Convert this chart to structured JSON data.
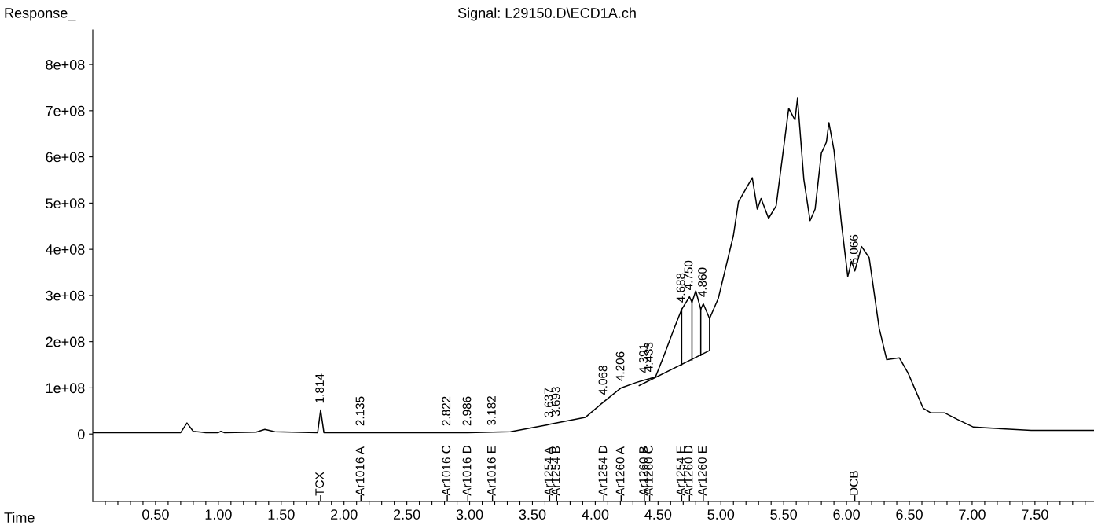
{
  "chart_data": {
    "type": "line",
    "title": "Signal: L29150.D\\ECD1A.ch",
    "ylabel": "Response_",
    "xlabel": "Time",
    "series": [
      {
        "color": "#000000",
        "x": [
          0,
          0.7,
          0.75,
          0.8,
          0.9,
          1.0,
          1.02,
          1.05,
          1.3,
          1.37,
          1.45,
          1.79,
          1.814,
          1.84,
          2.135,
          2.5,
          2.822,
          2.986,
          3.182,
          3.325,
          3.62,
          3.637,
          3.693,
          3.92,
          4.068,
          4.206,
          4.33,
          4.391,
          4.433,
          4.48,
          4.54,
          4.63,
          4.688,
          4.75,
          4.77,
          4.8,
          4.84,
          4.86,
          4.91,
          4.98,
          5.1,
          5.14,
          5.25,
          5.29,
          5.32,
          5.38,
          5.44,
          5.54,
          5.59,
          5.61,
          5.66,
          5.71,
          5.75,
          5.8,
          5.84,
          5.86,
          5.9,
          5.96,
          6.01,
          6.04,
          6.066,
          6.12,
          6.18,
          6.26,
          6.32,
          6.42,
          6.49,
          6.61,
          6.67,
          6.78,
          6.88,
          7.01,
          7.47,
          7.97
        ],
        "values": [
          3000000,
          3000000,
          24000000,
          6000000,
          3000000,
          3000000,
          6000000,
          3000000,
          4000000,
          10000000,
          5000000,
          3000000,
          52000000,
          3000000,
          3000000,
          3000000,
          3000000,
          3000000,
          4000000,
          5000000,
          20000000,
          21000000,
          24000000,
          36000000,
          70000000,
          100000000,
          112000000,
          117000000,
          120000000,
          124000000,
          165000000,
          230000000,
          270000000,
          297000000,
          285000000,
          310000000,
          270000000,
          282000000,
          250000000,
          294000000,
          430000000,
          503000000,
          555000000,
          487000000,
          510000000,
          467000000,
          494000000,
          705000000,
          680000000,
          727000000,
          552000000,
          462000000,
          487000000,
          608000000,
          632000000,
          674000000,
          615000000,
          455000000,
          341000000,
          374000000,
          353000000,
          406000000,
          382000000,
          229000000,
          161000000,
          165000000,
          132000000,
          56000000,
          46000000,
          46000000,
          32000000,
          15000000,
          8000000,
          8000000
        ]
      },
      {
        "color": "#000000",
        "x": [
          4.35,
          4.91,
          null,
          4.688,
          4.688,
          null,
          4.77,
          4.77,
          null,
          4.84,
          4.84,
          null,
          4.91,
          4.91
        ],
        "values": [
          105000000,
          181000000,
          null,
          150000000,
          270000000,
          null,
          160000000,
          285000000,
          null,
          170000000,
          270000000,
          null,
          181000000,
          250000000
        ]
      }
    ],
    "xlim": [
      0,
      7.97
    ],
    "ylim": [
      -146000000,
      875000000
    ],
    "xticks": [
      {
        "value": 0.1,
        "label": null
      },
      {
        "value": 0.2,
        "label": null
      },
      {
        "value": 0.3,
        "label": null
      },
      {
        "value": 0.4,
        "label": null
      },
      {
        "value": 0.5,
        "label": "0.50"
      },
      {
        "value": 0.6,
        "label": null
      },
      {
        "value": 0.7,
        "label": null
      },
      {
        "value": 0.8,
        "label": null
      },
      {
        "value": 0.9,
        "label": null
      },
      {
        "value": 1.0,
        "label": "1.00"
      },
      {
        "value": 1.1,
        "label": null
      },
      {
        "value": 1.2,
        "label": null
      },
      {
        "value": 1.3,
        "label": null
      },
      {
        "value": 1.4,
        "label": null
      },
      {
        "value": 1.5,
        "label": "1.50"
      },
      {
        "value": 1.6,
        "label": null
      },
      {
        "value": 1.7,
        "label": null
      },
      {
        "value": 1.8,
        "label": null
      },
      {
        "value": 1.9,
        "label": null
      },
      {
        "value": 2.0,
        "label": "2.00"
      },
      {
        "value": 2.1,
        "label": null
      },
      {
        "value": 2.2,
        "label": null
      },
      {
        "value": 2.3,
        "label": null
      },
      {
        "value": 2.4,
        "label": null
      },
      {
        "value": 2.5,
        "label": "2.50"
      },
      {
        "value": 2.6,
        "label": null
      },
      {
        "value": 2.7,
        "label": null
      },
      {
        "value": 2.8,
        "label": null
      },
      {
        "value": 2.9,
        "label": null
      },
      {
        "value": 3.0,
        "label": "3.00"
      },
      {
        "value": 3.1,
        "label": null
      },
      {
        "value": 3.2,
        "label": null
      },
      {
        "value": 3.3,
        "label": null
      },
      {
        "value": 3.4,
        "label": null
      },
      {
        "value": 3.5,
        "label": "3.50"
      },
      {
        "value": 3.6,
        "label": null
      },
      {
        "value": 3.7,
        "label": null
      },
      {
        "value": 3.8,
        "label": null
      },
      {
        "value": 3.9,
        "label": null
      },
      {
        "value": 4.0,
        "label": "4.00"
      },
      {
        "value": 4.1,
        "label": null
      },
      {
        "value": 4.2,
        "label": null
      },
      {
        "value": 4.3,
        "label": null
      },
      {
        "value": 4.4,
        "label": null
      },
      {
        "value": 4.5,
        "label": "4.50"
      },
      {
        "value": 4.6,
        "label": null
      },
      {
        "value": 4.7,
        "label": null
      },
      {
        "value": 4.8,
        "label": null
      },
      {
        "value": 4.9,
        "label": null
      },
      {
        "value": 5.0,
        "label": "5.00"
      },
      {
        "value": 5.1,
        "label": null
      },
      {
        "value": 5.2,
        "label": null
      },
      {
        "value": 5.3,
        "label": null
      },
      {
        "value": 5.4,
        "label": null
      },
      {
        "value": 5.5,
        "label": "5.50"
      },
      {
        "value": 5.6,
        "label": null
      },
      {
        "value": 5.7,
        "label": null
      },
      {
        "value": 5.8,
        "label": null
      },
      {
        "value": 5.9,
        "label": null
      },
      {
        "value": 6.0,
        "label": "6.00"
      },
      {
        "value": 6.1,
        "label": null
      },
      {
        "value": 6.2,
        "label": null
      },
      {
        "value": 6.3,
        "label": null
      },
      {
        "value": 6.4,
        "label": null
      },
      {
        "value": 6.5,
        "label": "6.50"
      },
      {
        "value": 6.6,
        "label": null
      },
      {
        "value": 6.7,
        "label": null
      },
      {
        "value": 6.8,
        "label": null
      },
      {
        "value": 6.9,
        "label": null
      },
      {
        "value": 7.0,
        "label": "7.00"
      },
      {
        "value": 7.1,
        "label": null
      },
      {
        "value": 7.2,
        "label": null
      },
      {
        "value": 7.3,
        "label": null
      },
      {
        "value": 7.4,
        "label": null
      },
      {
        "value": 7.5,
        "label": "7.50"
      },
      {
        "value": 7.6,
        "label": null
      },
      {
        "value": 7.7,
        "label": null
      },
      {
        "value": 7.8,
        "label": null
      },
      {
        "value": 7.9,
        "label": null
      }
    ],
    "yticks": [
      0,
      {
        "value": 100000000,
        "label": "1e+08"
      },
      {
        "value": 200000000,
        "label": "2e+08"
      },
      {
        "value": 300000000,
        "label": "3e+08"
      },
      {
        "value": 400000000,
        "label": "4e+08"
      },
      {
        "value": 500000000,
        "label": "5e+08"
      },
      {
        "value": 600000000,
        "label": "6e+08"
      },
      {
        "value": 700000000,
        "label": "7e+08"
      },
      {
        "value": 800000000,
        "label": "8e+08"
      }
    ],
    "grid": false,
    "legend": false,
    "marker": "none",
    "line_style": "solid",
    "annotations": [
      {
        "text": "1.814",
        "x": 1.814,
        "y": 52000000
      },
      {
        "text": "2.135",
        "x": 2.135,
        "y": 3000000
      },
      {
        "text": "2.822",
        "x": 2.822,
        "y": 3000000
      },
      {
        "text": "2.986",
        "x": 2.986,
        "y": 3000000
      },
      {
        "text": "3.182",
        "x": 3.182,
        "y": 4000000
      },
      {
        "text": "3.637",
        "x": 3.637,
        "y": 21000000
      },
      {
        "text": "3.693",
        "x": 3.693,
        "y": 24000000
      },
      {
        "text": "4.068",
        "x": 4.068,
        "y": 70000000
      },
      {
        "text": "4.206",
        "x": 4.206,
        "y": 100000000
      },
      {
        "text": "4.391",
        "x": 4.391,
        "y": 117000000
      },
      {
        "text": "4.433",
        "x": 4.433,
        "y": 120000000
      },
      {
        "text": "4.688",
        "x": 4.688,
        "y": 270000000
      },
      {
        "text": "4.750",
        "x": 4.75,
        "y": 297000000
      },
      {
        "text": "4.860",
        "x": 4.86,
        "y": 282000000
      },
      {
        "text": "6.066",
        "x": 6.066,
        "y": 353000000
      },
      "TCX",
      "Ar1016 A",
      "Ar1016 C",
      "Ar1016 D",
      "Ar1016 E",
      "Ar1254 A",
      "Ar1254 B",
      "Ar1254 D",
      "Ar1260 A",
      "Ar1260 B",
      "Ar1260 C",
      "Ar1254 E",
      "Ar1260 D",
      "Ar1260 E",
      "DCB"
    ]
  }
}
